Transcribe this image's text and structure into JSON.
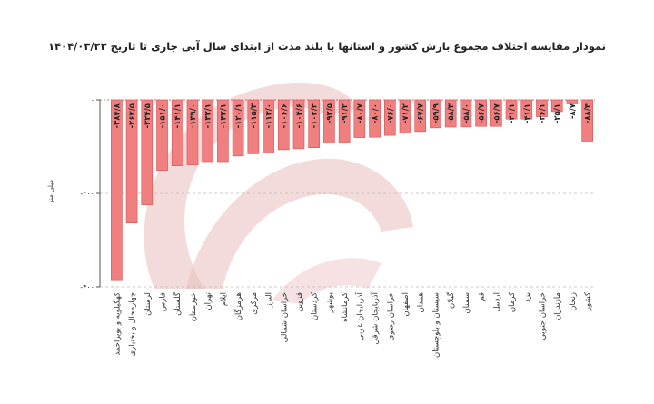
{
  "chart_data": {
    "type": "bar",
    "title": "نمودار مقایسه اختلاف مجموع بارش کشور و استانها با بلند مدت از ابتدای سال آبی جاری تا تاریخ ۱۴۰۴/۰۳/۲۳",
    "ylabel": "میلی متر",
    "ylim": [
      -400,
      0
    ],
    "yticks": [
      0,
      -200,
      -400
    ],
    "ytick_labels": [
      "۰",
      "-۲۰۰",
      "-۴۰۰"
    ],
    "grid": true,
    "bar_color": "#f08080",
    "bar_stroke": "#d65050",
    "categories": [
      "کهگیلویه و بویراحمد",
      "چهارمحال و بختیاری",
      "لرستان",
      "فارس",
      "گلستان",
      "خوزستان",
      "تهران",
      "ایلام",
      "هرمزگان",
      "مرکزی",
      "البرز",
      "خراسان شمالی",
      "قزوین",
      "کردستان",
      "بوشهر",
      "کرمانشاه",
      "آذربایجان غربی",
      "آذربایجان شرقی",
      "خراسان رضوی",
      "اصفهان",
      "همدان",
      "سیستان و بلوچستان",
      "گیلان",
      "سمنان",
      "قم",
      "اردبیل",
      "کرمان",
      "یزد",
      "خراسان جنوبی",
      "مازندران",
      "زنجان",
      "کشور"
    ],
    "values": [
      -384.8,
      -263.5,
      -224.5,
      -151.0,
      -141.1,
      -139.0,
      -132.1,
      -132.1,
      -120.1,
      -115.3,
      -113.0,
      -106.6,
      -104.6,
      -102.3,
      -92.5,
      -91.2,
      -80.7,
      -80.0,
      -76.0,
      -71.2,
      -67.7,
      -59.9,
      -58.3,
      -58.0,
      -56.7,
      -56.7,
      -41.1,
      -41.1,
      -36.1,
      -25.1,
      -8.7,
      -88.4
    ],
    "value_labels": [
      "-۳۸۴/۸",
      "-۲۶۳/۵",
      "-۲۲۴/۵",
      "-۱۵۱/۰",
      "-۱۴۱/۱",
      "-۱۳۹/۰",
      "-۱۳۲/۱",
      "-۱۳۲/۱",
      "-۱۲۰/۱",
      "-۱۱۵/۳",
      "-۱۱۳/۰",
      "-۱۰۶/۶",
      "-۱۰۴/۶",
      "-۱۰۲/۳",
      "-۹۲/۵",
      "-۹۱/۲",
      "-۸۰/۷",
      "-۸۰/۰",
      "-۷۶/۰",
      "-۷۱/۲",
      "-۶۷/۷",
      "-۵۹/۹",
      "-۵۸/۳",
      "-۵۸/۰",
      "-۵۶/۷",
      "-۵۶/۷",
      "-۴۱/۱",
      "-۴۱/۱",
      "-۳۶/۱",
      "-۲۵/۱",
      "-۸/۷",
      "-۸۸/۴"
    ]
  }
}
